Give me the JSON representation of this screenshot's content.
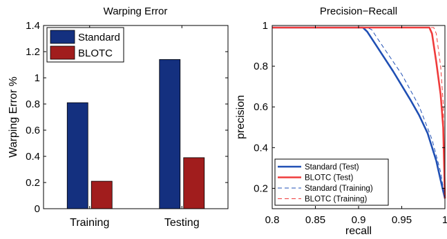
{
  "chart_data": [
    {
      "type": "bar",
      "title": "Warping Error",
      "xlabel": "",
      "ylabel": "Warping Error %",
      "categories": [
        "Training",
        "Testing"
      ],
      "ylim": [
        0,
        1.4
      ],
      "yticks": [
        "0",
        "0.2",
        "0.4",
        "0.6",
        "0.8",
        "1",
        "1.2",
        "1.4"
      ],
      "legend_position": "top-left",
      "series": [
        {
          "name": "Standard",
          "color": "#14307f",
          "values": [
            0.81,
            1.14
          ]
        },
        {
          "name": "BLOTC",
          "color": "#a11d1d",
          "values": [
            0.21,
            0.39
          ]
        }
      ]
    },
    {
      "type": "line",
      "title": "Precision−Recall",
      "xlabel": "recall",
      "ylabel": "precision",
      "xlim": [
        0.8,
        1.0
      ],
      "ylim": [
        0.1,
        1.0
      ],
      "xticks": [
        "0.8",
        "0.85",
        "0.9",
        "0.95",
        "1"
      ],
      "yticks": [
        "0.2",
        "0.4",
        "0.6",
        "0.8",
        "1"
      ],
      "legend_position": "bottom-left",
      "series": [
        {
          "name": "Standard (Test)",
          "color": "#1f4fb4",
          "style": "solid",
          "x": [
            0.8,
            0.905,
            0.91,
            0.92,
            0.93,
            0.94,
            0.95,
            0.96,
            0.97,
            0.98,
            0.99,
            0.995,
            1.0
          ],
          "y": [
            0.99,
            0.99,
            0.97,
            0.905,
            0.84,
            0.775,
            0.705,
            0.635,
            0.56,
            0.47,
            0.335,
            0.24,
            0.15
          ]
        },
        {
          "name": "BLOTC (Test)",
          "color": "#ef3b3b",
          "style": "solid",
          "x": [
            0.8,
            0.982,
            0.985,
            0.99,
            0.995,
            0.998,
            1.0
          ],
          "y": [
            0.99,
            0.99,
            0.96,
            0.82,
            0.66,
            0.5,
            0.15
          ]
        },
        {
          "name": "Standard (Training)",
          "color": "#1f4fb4",
          "style": "dashed",
          "x": [
            0.8,
            0.91,
            0.915,
            0.93,
            0.95,
            0.97,
            0.985,
            0.995,
            1.0
          ],
          "y": [
            0.99,
            0.99,
            0.98,
            0.885,
            0.76,
            0.605,
            0.44,
            0.28,
            0.15
          ]
        },
        {
          "name": "BLOTC (Training)",
          "color": "#ef3b3b",
          "style": "dashed",
          "x": [
            0.8,
            0.987,
            0.99,
            0.995,
            0.998,
            1.0
          ],
          "y": [
            0.99,
            0.99,
            0.96,
            0.8,
            0.62,
            0.15
          ]
        }
      ]
    }
  ]
}
